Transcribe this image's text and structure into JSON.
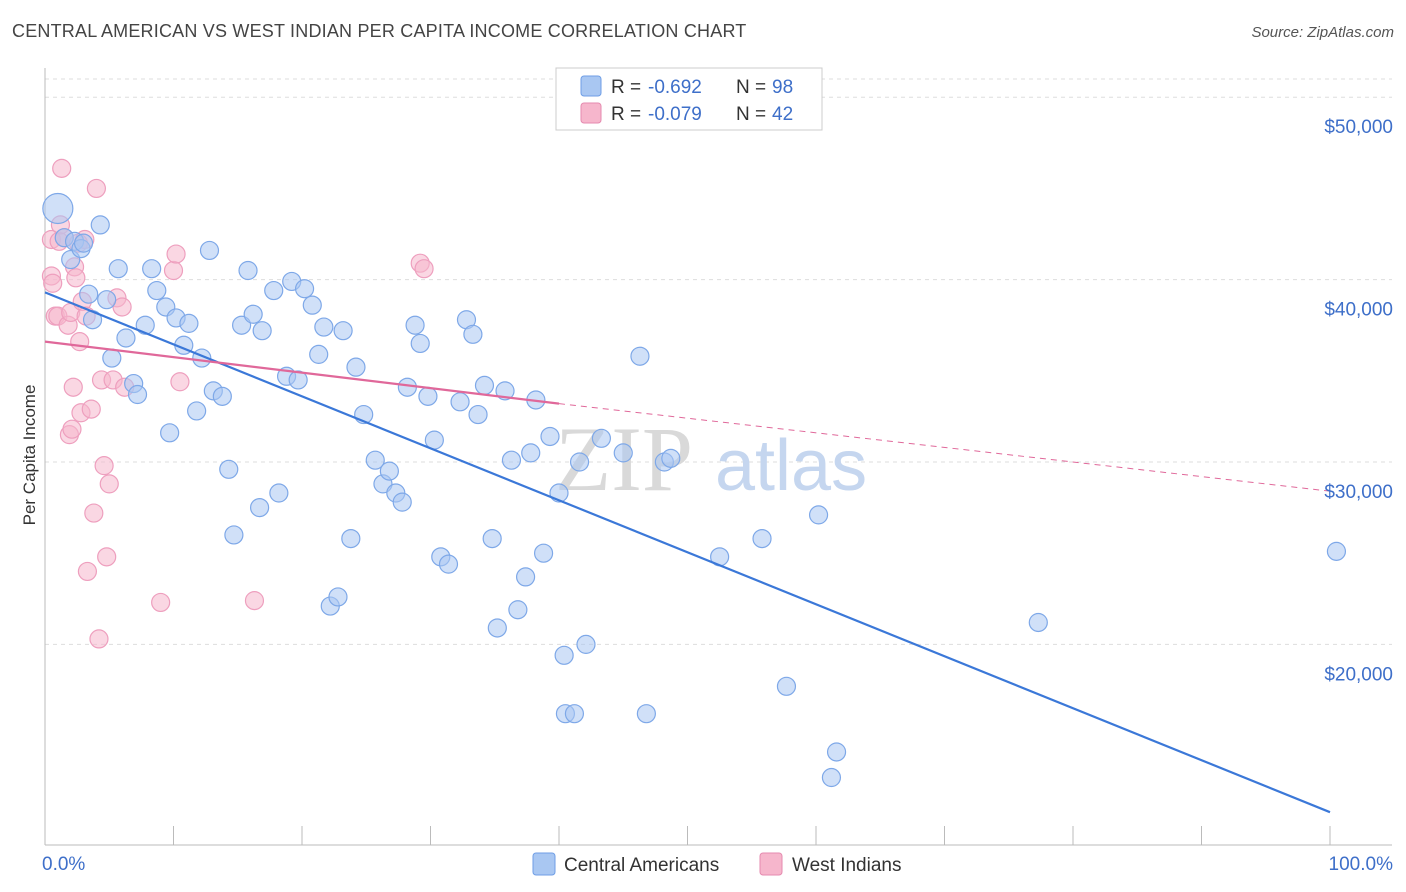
{
  "title": "CENTRAL AMERICAN VS WEST INDIAN PER CAPITA INCOME CORRELATION CHART",
  "source": "Source: ZipAtlas.com",
  "watermark": {
    "zip": "ZIP",
    "atlas": "atlas"
  },
  "colors": {
    "blue": "#3b78d8",
    "blue_fill": "#a9c7f2",
    "pink": "#e0689a",
    "pink_fill": "#f6b6cc",
    "grid": "#dddddd",
    "axis_text": "#3e6fc9"
  },
  "stats": [
    {
      "series": "Central Americans",
      "r_label": "R =",
      "r": "-0.692",
      "n_label": "N =",
      "n": "98"
    },
    {
      "series": "West Indians",
      "r_label": "R =",
      "r": "-0.079",
      "n_label": "N =",
      "n": "42"
    }
  ],
  "chart_data": {
    "type": "scatter",
    "title": "CENTRAL AMERICAN VS WEST INDIAN PER CAPITA INCOME CORRELATION CHART",
    "xlabel": "",
    "ylabel": "Per Capita Income",
    "xlim": [
      0,
      100
    ],
    "ylim": [
      9000,
      51000
    ],
    "x_tick_labels": [
      {
        "value": 0,
        "label": "0.0%"
      },
      {
        "value": 100,
        "label": "100.0%"
      }
    ],
    "y_ticks": [
      {
        "value": 20000,
        "label": "$20,000"
      },
      {
        "value": 30000,
        "label": "$30,000"
      },
      {
        "value": 40000,
        "label": "$40,000"
      },
      {
        "value": 50000,
        "label": "$50,000"
      }
    ],
    "series": [
      {
        "name": "Central Americans",
        "trend": {
          "x": [
            0,
            100
          ],
          "y": [
            39300,
            10800
          ],
          "style": "solid"
        },
        "points": [
          [
            1.0,
            43900
          ],
          [
            1.5,
            42300
          ],
          [
            2.0,
            41100
          ],
          [
            2.3,
            42100
          ],
          [
            2.8,
            41700
          ],
          [
            3.0,
            42000
          ],
          [
            4.3,
            43000
          ],
          [
            3.4,
            39200
          ],
          [
            3.7,
            37800
          ],
          [
            4.8,
            38900
          ],
          [
            5.2,
            35700
          ],
          [
            5.7,
            40600
          ],
          [
            6.3,
            36800
          ],
          [
            6.9,
            34300
          ],
          [
            7.2,
            33700
          ],
          [
            7.8,
            37500
          ],
          [
            8.3,
            40600
          ],
          [
            8.7,
            39400
          ],
          [
            9.4,
            38500
          ],
          [
            9.7,
            31600
          ],
          [
            10.2,
            37900
          ],
          [
            10.8,
            36400
          ],
          [
            11.2,
            37600
          ],
          [
            11.8,
            32800
          ],
          [
            12.2,
            35700
          ],
          [
            12.8,
            41600
          ],
          [
            13.1,
            33900
          ],
          [
            13.8,
            33600
          ],
          [
            14.3,
            29600
          ],
          [
            14.7,
            26000
          ],
          [
            15.3,
            37500
          ],
          [
            15.8,
            40500
          ],
          [
            16.2,
            38100
          ],
          [
            16.7,
            27500
          ],
          [
            16.9,
            37200
          ],
          [
            17.8,
            39400
          ],
          [
            18.2,
            28300
          ],
          [
            18.8,
            34700
          ],
          [
            19.2,
            39900
          ],
          [
            19.7,
            34500
          ],
          [
            20.2,
            39500
          ],
          [
            20.8,
            38600
          ],
          [
            21.3,
            35900
          ],
          [
            21.7,
            37400
          ],
          [
            22.2,
            22100
          ],
          [
            22.8,
            22600
          ],
          [
            23.2,
            37200
          ],
          [
            23.8,
            25800
          ],
          [
            24.2,
            35200
          ],
          [
            24.8,
            32600
          ],
          [
            25.7,
            30100
          ],
          [
            26.3,
            28800
          ],
          [
            26.8,
            29500
          ],
          [
            27.3,
            28300
          ],
          [
            27.8,
            27800
          ],
          [
            28.2,
            34100
          ],
          [
            28.8,
            37500
          ],
          [
            29.2,
            36500
          ],
          [
            29.8,
            33600
          ],
          [
            30.3,
            31200
          ],
          [
            30.8,
            24800
          ],
          [
            31.4,
            24400
          ],
          [
            32.3,
            33300
          ],
          [
            32.8,
            37800
          ],
          [
            33.3,
            37000
          ],
          [
            33.7,
            32600
          ],
          [
            34.2,
            34200
          ],
          [
            34.8,
            25800
          ],
          [
            35.2,
            20900
          ],
          [
            35.8,
            33900
          ],
          [
            36.3,
            30100
          ],
          [
            36.8,
            21900
          ],
          [
            37.4,
            23700
          ],
          [
            37.8,
            30500
          ],
          [
            38.2,
            33400
          ],
          [
            38.8,
            25000
          ],
          [
            39.3,
            31400
          ],
          [
            40.0,
            28300
          ],
          [
            40.4,
            19400
          ],
          [
            40.5,
            16200
          ],
          [
            41.2,
            16200
          ],
          [
            41.6,
            30000
          ],
          [
            42.1,
            20000
          ],
          [
            43.3,
            31300
          ],
          [
            45.0,
            30500
          ],
          [
            46.3,
            35800
          ],
          [
            46.8,
            16200
          ],
          [
            48.2,
            30000
          ],
          [
            48.7,
            30200
          ],
          [
            52.5,
            24800
          ],
          [
            55.8,
            25800
          ],
          [
            57.7,
            17700
          ],
          [
            60.2,
            27100
          ],
          [
            61.2,
            12700
          ],
          [
            61.6,
            14100
          ],
          [
            77.3,
            21200
          ],
          [
            100.5,
            25100
          ]
        ]
      },
      {
        "name": "West Indians",
        "trend": {
          "x": [
            0,
            40
          ],
          "y": [
            36600,
            33200
          ],
          "y_ext": [
            40,
            100
          ],
          "y_ext_vals": [
            33200,
            28400
          ],
          "style": "solid-then-dashed"
        },
        "points": [
          [
            0.5,
            42200
          ],
          [
            0.5,
            40200
          ],
          [
            0.6,
            39800
          ],
          [
            0.8,
            38000
          ],
          [
            1.0,
            38000
          ],
          [
            1.1,
            42100
          ],
          [
            1.2,
            43000
          ],
          [
            1.3,
            46100
          ],
          [
            1.5,
            42300
          ],
          [
            1.8,
            37500
          ],
          [
            1.9,
            31500
          ],
          [
            2.0,
            38200
          ],
          [
            2.1,
            31800
          ],
          [
            2.2,
            34100
          ],
          [
            2.3,
            40700
          ],
          [
            2.4,
            40100
          ],
          [
            2.6,
            42000
          ],
          [
            2.7,
            36600
          ],
          [
            2.8,
            32700
          ],
          [
            2.9,
            38800
          ],
          [
            3.1,
            42200
          ],
          [
            3.2,
            38000
          ],
          [
            3.3,
            24000
          ],
          [
            3.6,
            32900
          ],
          [
            3.8,
            27200
          ],
          [
            4.0,
            45000
          ],
          [
            4.2,
            20300
          ],
          [
            4.4,
            34500
          ],
          [
            4.6,
            29800
          ],
          [
            4.8,
            24800
          ],
          [
            5.0,
            28800
          ],
          [
            5.3,
            34500
          ],
          [
            5.6,
            39000
          ],
          [
            6.0,
            38500
          ],
          [
            6.2,
            34100
          ],
          [
            9.0,
            22300
          ],
          [
            10.0,
            40500
          ],
          [
            10.2,
            41400
          ],
          [
            10.5,
            34400
          ],
          [
            16.3,
            22400
          ],
          [
            29.2,
            40900
          ],
          [
            29.5,
            40600
          ]
        ]
      }
    ]
  }
}
